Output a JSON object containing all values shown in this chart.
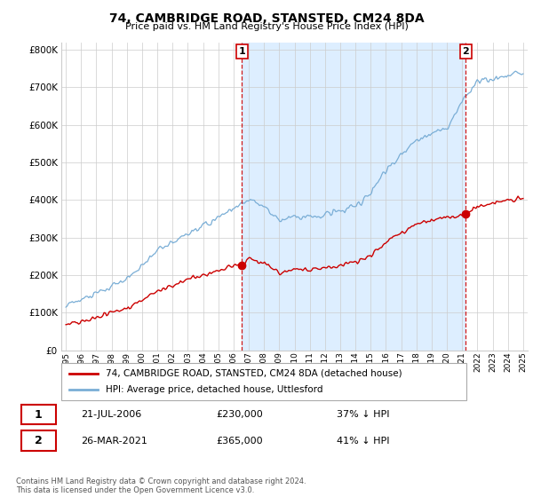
{
  "title": "74, CAMBRIDGE ROAD, STANSTED, CM24 8DA",
  "subtitle": "Price paid vs. HM Land Registry's House Price Index (HPI)",
  "legend_property": "74, CAMBRIDGE ROAD, STANSTED, CM24 8DA (detached house)",
  "legend_hpi": "HPI: Average price, detached house, Uttlesford",
  "transaction1_date": "21-JUL-2006",
  "transaction1_price": "£230,000",
  "transaction1_hpi": "37% ↓ HPI",
  "transaction1_year": 2006.55,
  "transaction1_value": 230000,
  "transaction2_date": "26-MAR-2021",
  "transaction2_price": "£365,000",
  "transaction2_hpi": "41% ↓ HPI",
  "transaction2_year": 2021.23,
  "transaction2_value": 365000,
  "property_color": "#cc0000",
  "hpi_color": "#7aaed6",
  "shade_color": "#ddeeff",
  "marker_box_color": "#cc0000",
  "ylim": [
    0,
    820000
  ],
  "yticks": [
    0,
    100000,
    200000,
    300000,
    400000,
    500000,
    600000,
    700000,
    800000
  ],
  "footer": "Contains HM Land Registry data © Crown copyright and database right 2024.\nThis data is licensed under the Open Government Licence v3.0.",
  "background_color": "#ffffff",
  "grid_color": "#cccccc"
}
